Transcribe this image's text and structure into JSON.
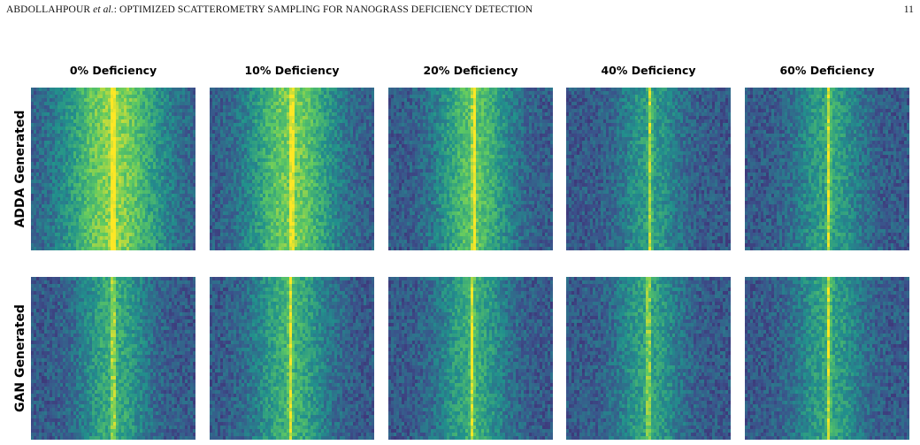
{
  "header": {
    "authors": "ABDOLLAHPOUR ",
    "etal": "et al.",
    "title_rest": ": OPTIMIZED SCATTEROMETRY SAMPLING FOR NANOGRASS DEFICIENCY DETECTION",
    "page_number": "11"
  },
  "figure": {
    "columns": [
      "0% Deficiency",
      "10% Deficiency",
      "20% Deficiency",
      "40% Deficiency",
      "60% Deficiency"
    ],
    "rows": [
      "ADDA Generated",
      "GAN Generated"
    ],
    "colormap": [
      "#440154",
      "#3b528b",
      "#21918c",
      "#5ec962",
      "#fde725"
    ],
    "panels": [
      [
        {
          "peak_position": 0.5,
          "band_width": 0.3,
          "brightness": 0.82
        },
        {
          "peak_position": 0.5,
          "band_width": 0.26,
          "brightness": 0.78
        },
        {
          "peak_position": 0.52,
          "band_width": 0.22,
          "brightness": 0.72
        },
        {
          "peak_position": 0.51,
          "band_width": 0.18,
          "brightness": 0.55
        },
        {
          "peak_position": 0.51,
          "band_width": 0.2,
          "brightness": 0.58
        }
      ],
      [
        {
          "peak_position": 0.5,
          "band_width": 0.2,
          "brightness": 0.62
        },
        {
          "peak_position": 0.49,
          "band_width": 0.22,
          "brightness": 0.64
        },
        {
          "peak_position": 0.51,
          "band_width": 0.2,
          "brightness": 0.62
        },
        {
          "peak_position": 0.5,
          "band_width": 0.19,
          "brightness": 0.58
        },
        {
          "peak_position": 0.51,
          "band_width": 0.2,
          "brightness": 0.58
        }
      ]
    ]
  }
}
